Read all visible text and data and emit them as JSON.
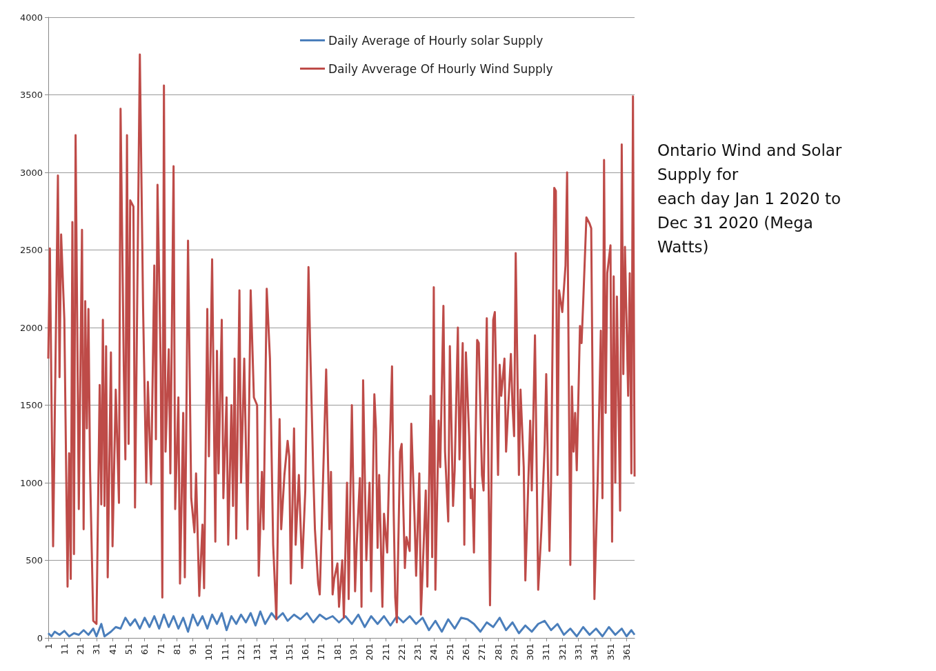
{
  "chart_data": {
    "type": "line",
    "title": "Ontario Wind and Solar Supply for\neach day Jan 1 2020 to Dec 31 2020 (Mega Watts)",
    "xlim": [
      1,
      366
    ],
    "xticks": [
      1,
      11,
      21,
      31,
      41,
      51,
      61,
      71,
      81,
      91,
      101,
      111,
      121,
      131,
      141,
      151,
      161,
      171,
      181,
      191,
      201,
      211,
      221,
      231,
      241,
      251,
      261,
      271,
      281,
      291,
      301,
      311,
      321,
      331,
      341,
      351,
      361
    ],
    "ylim": [
      0,
      4000
    ],
    "yticks": [
      0,
      500,
      1000,
      1500,
      2000,
      2500,
      3000,
      3500,
      4000
    ],
    "grid": "y",
    "legend": "top",
    "marker": "none",
    "line_style": "solid",
    "series": [
      {
        "name": "Daily Average of Hourly solar Supply",
        "color": "#4a7ebb",
        "x": [
          1,
          3,
          5,
          8,
          11,
          14,
          17,
          20,
          23,
          26,
          29,
          31,
          34,
          36,
          40,
          43,
          46,
          49,
          52,
          55,
          58,
          61,
          64,
          67,
          70,
          73,
          76,
          79,
          82,
          85,
          88,
          91,
          94,
          97,
          100,
          103,
          106,
          109,
          112,
          115,
          118,
          121,
          124,
          127,
          130,
          133,
          136,
          140,
          143,
          147,
          150,
          154,
          158,
          162,
          166,
          170,
          174,
          178,
          182,
          186,
          190,
          194,
          198,
          202,
          206,
          210,
          214,
          218,
          222,
          226,
          230,
          234,
          238,
          242,
          246,
          250,
          254,
          258,
          262,
          266,
          270,
          274,
          278,
          282,
          286,
          290,
          294,
          298,
          302,
          306,
          310,
          314,
          318,
          322,
          326,
          330,
          334,
          338,
          342,
          346,
          350,
          354,
          358,
          361,
          364,
          366
        ],
        "values": [
          30,
          10,
          40,
          20,
          45,
          10,
          30,
          20,
          50,
          20,
          60,
          10,
          90,
          10,
          40,
          70,
          60,
          130,
          80,
          120,
          60,
          130,
          70,
          140,
          60,
          150,
          70,
          140,
          60,
          130,
          40,
          150,
          80,
          140,
          60,
          150,
          90,
          160,
          50,
          140,
          90,
          150,
          100,
          160,
          80,
          170,
          90,
          160,
          120,
          160,
          110,
          150,
          120,
          160,
          100,
          150,
          120,
          140,
          100,
          140,
          90,
          150,
          70,
          140,
          90,
          140,
          80,
          140,
          100,
          140,
          90,
          130,
          50,
          110,
          40,
          120,
          60,
          130,
          120,
          90,
          40,
          100,
          70,
          130,
          50,
          100,
          30,
          80,
          40,
          90,
          110,
          50,
          90,
          20,
          60,
          10,
          70,
          20,
          60,
          10,
          70,
          20,
          60,
          10,
          50,
          20
        ]
      },
      {
        "name": "Daily Avverage Of Hourly Wind Supply",
        "color": "#be4b48",
        "x": [
          1,
          2,
          4,
          7,
          8,
          9,
          11,
          13,
          14,
          15,
          16,
          17,
          18,
          20,
          22,
          23,
          24,
          25,
          26,
          27,
          29,
          31,
          33,
          34,
          35,
          36,
          37,
          38,
          40,
          41,
          43,
          45,
          46,
          48,
          49,
          50,
          51,
          52,
          54,
          55,
          58,
          60,
          62,
          63,
          65,
          67,
          68,
          69,
          71,
          72,
          73,
          74,
          76,
          77,
          79,
          80,
          82,
          83,
          85,
          86,
          88,
          90,
          92,
          93,
          95,
          97,
          98,
          100,
          101,
          103,
          105,
          106,
          107,
          109,
          110,
          112,
          113,
          115,
          116,
          117,
          118,
          120,
          121,
          123,
          125,
          127,
          129,
          131,
          132,
          134,
          135,
          137,
          139,
          141,
          143,
          145,
          146,
          148,
          150,
          151,
          152,
          154,
          155,
          157,
          159,
          161,
          163,
          164,
          166,
          167,
          169,
          170,
          172,
          174,
          176,
          177,
          178,
          179,
          181,
          182,
          184,
          185,
          187,
          188,
          190,
          192,
          193,
          195,
          196,
          197,
          199,
          201,
          202,
          204,
          205,
          206,
          207,
          209,
          210,
          212,
          213,
          215,
          216,
          217,
          218,
          220,
          221,
          223,
          224,
          226,
          227,
          229,
          230,
          232,
          233,
          236,
          237,
          239,
          240,
          241,
          242,
          244,
          245,
          247,
          248,
          250,
          251,
          253,
          254,
          256,
          257,
          259,
          260,
          261,
          263,
          264,
          265,
          266,
          268,
          269,
          271,
          272,
          274,
          275,
          276,
          278,
          279,
          281,
          282,
          283,
          285,
          286,
          288,
          289,
          290,
          291,
          292,
          294,
          295,
          297,
          298,
          301,
          302,
          304,
          306,
          308,
          310,
          311,
          313,
          314,
          316,
          317,
          318,
          319,
          321,
          323,
          324,
          326,
          327,
          328,
          329,
          330,
          332,
          333,
          334,
          336,
          338,
          339,
          341,
          343,
          345,
          346,
          347,
          348,
          349,
          351,
          352,
          353,
          354,
          355,
          357,
          358,
          359,
          360,
          362,
          363,
          364,
          365,
          366
        ],
        "values": [
          1800,
          2510,
          590,
          2980,
          1680,
          2600,
          2050,
          330,
          1190,
          380,
          2680,
          540,
          3240,
          830,
          2630,
          700,
          2170,
          1350,
          2120,
          1080,
          110,
          90,
          1630,
          860,
          2050,
          850,
          1880,
          390,
          1840,
          590,
          1600,
          870,
          3410,
          1750,
          1150,
          3240,
          1250,
          2820,
          2780,
          840,
          3760,
          2140,
          1000,
          1650,
          990,
          2400,
          1280,
          2920,
          1750,
          260,
          3560,
          1200,
          1860,
          1060,
          3040,
          830,
          1550,
          350,
          1450,
          390,
          2560,
          900,
          680,
          1060,
          270,
          730,
          320,
          2120,
          1170,
          2440,
          620,
          1850,
          1060,
          2050,
          900,
          1550,
          600,
          1500,
          850,
          1800,
          640,
          2240,
          1000,
          1800,
          700,
          2240,
          1550,
          1500,
          400,
          1070,
          700,
          2250,
          1800,
          600,
          120,
          1410,
          700,
          1050,
          1270,
          1170,
          350,
          1350,
          600,
          1050,
          450,
          950,
          2390,
          1900,
          1050,
          700,
          350,
          280,
          1000,
          1730,
          700,
          1070,
          280,
          380,
          480,
          200,
          500,
          130,
          1000,
          250,
          1500,
          300,
          600,
          1030,
          200,
          1660,
          500,
          1000,
          300,
          1570,
          1350,
          580,
          1050,
          200,
          800,
          550,
          1000,
          1750,
          830,
          260,
          100,
          1200,
          1250,
          450,
          650,
          560,
          1380,
          780,
          400,
          1060,
          150,
          950,
          330,
          1560,
          520,
          2260,
          310,
          1400,
          1100,
          2140,
          1200,
          750,
          1880,
          850,
          1080,
          2000,
          1150,
          1900,
          600,
          1840,
          1300,
          900,
          960,
          550,
          1920,
          1900,
          1050,
          950,
          2060,
          1100,
          210,
          2050,
          2100,
          1050,
          1760,
          1560,
          1800,
          1200,
          1620,
          1830,
          1500,
          1300,
          2480,
          1050,
          1600,
          1100,
          370,
          1400,
          950,
          1950,
          310,
          700,
          1240,
          1700,
          560,
          1000,
          2900,
          2880,
          1050,
          2240,
          2100,
          2400,
          3000,
          470,
          1620,
          1200,
          1450,
          1080,
          2010,
          1900,
          2160,
          2710,
          2670,
          2640,
          250,
          1000,
          1980,
          900,
          3080,
          1450,
          2350,
          2530,
          620,
          2330,
          1000,
          2200,
          820,
          3180,
          1700,
          2520,
          1560,
          2350,
          1060,
          3490,
          1040
        ]
      }
    ]
  }
}
